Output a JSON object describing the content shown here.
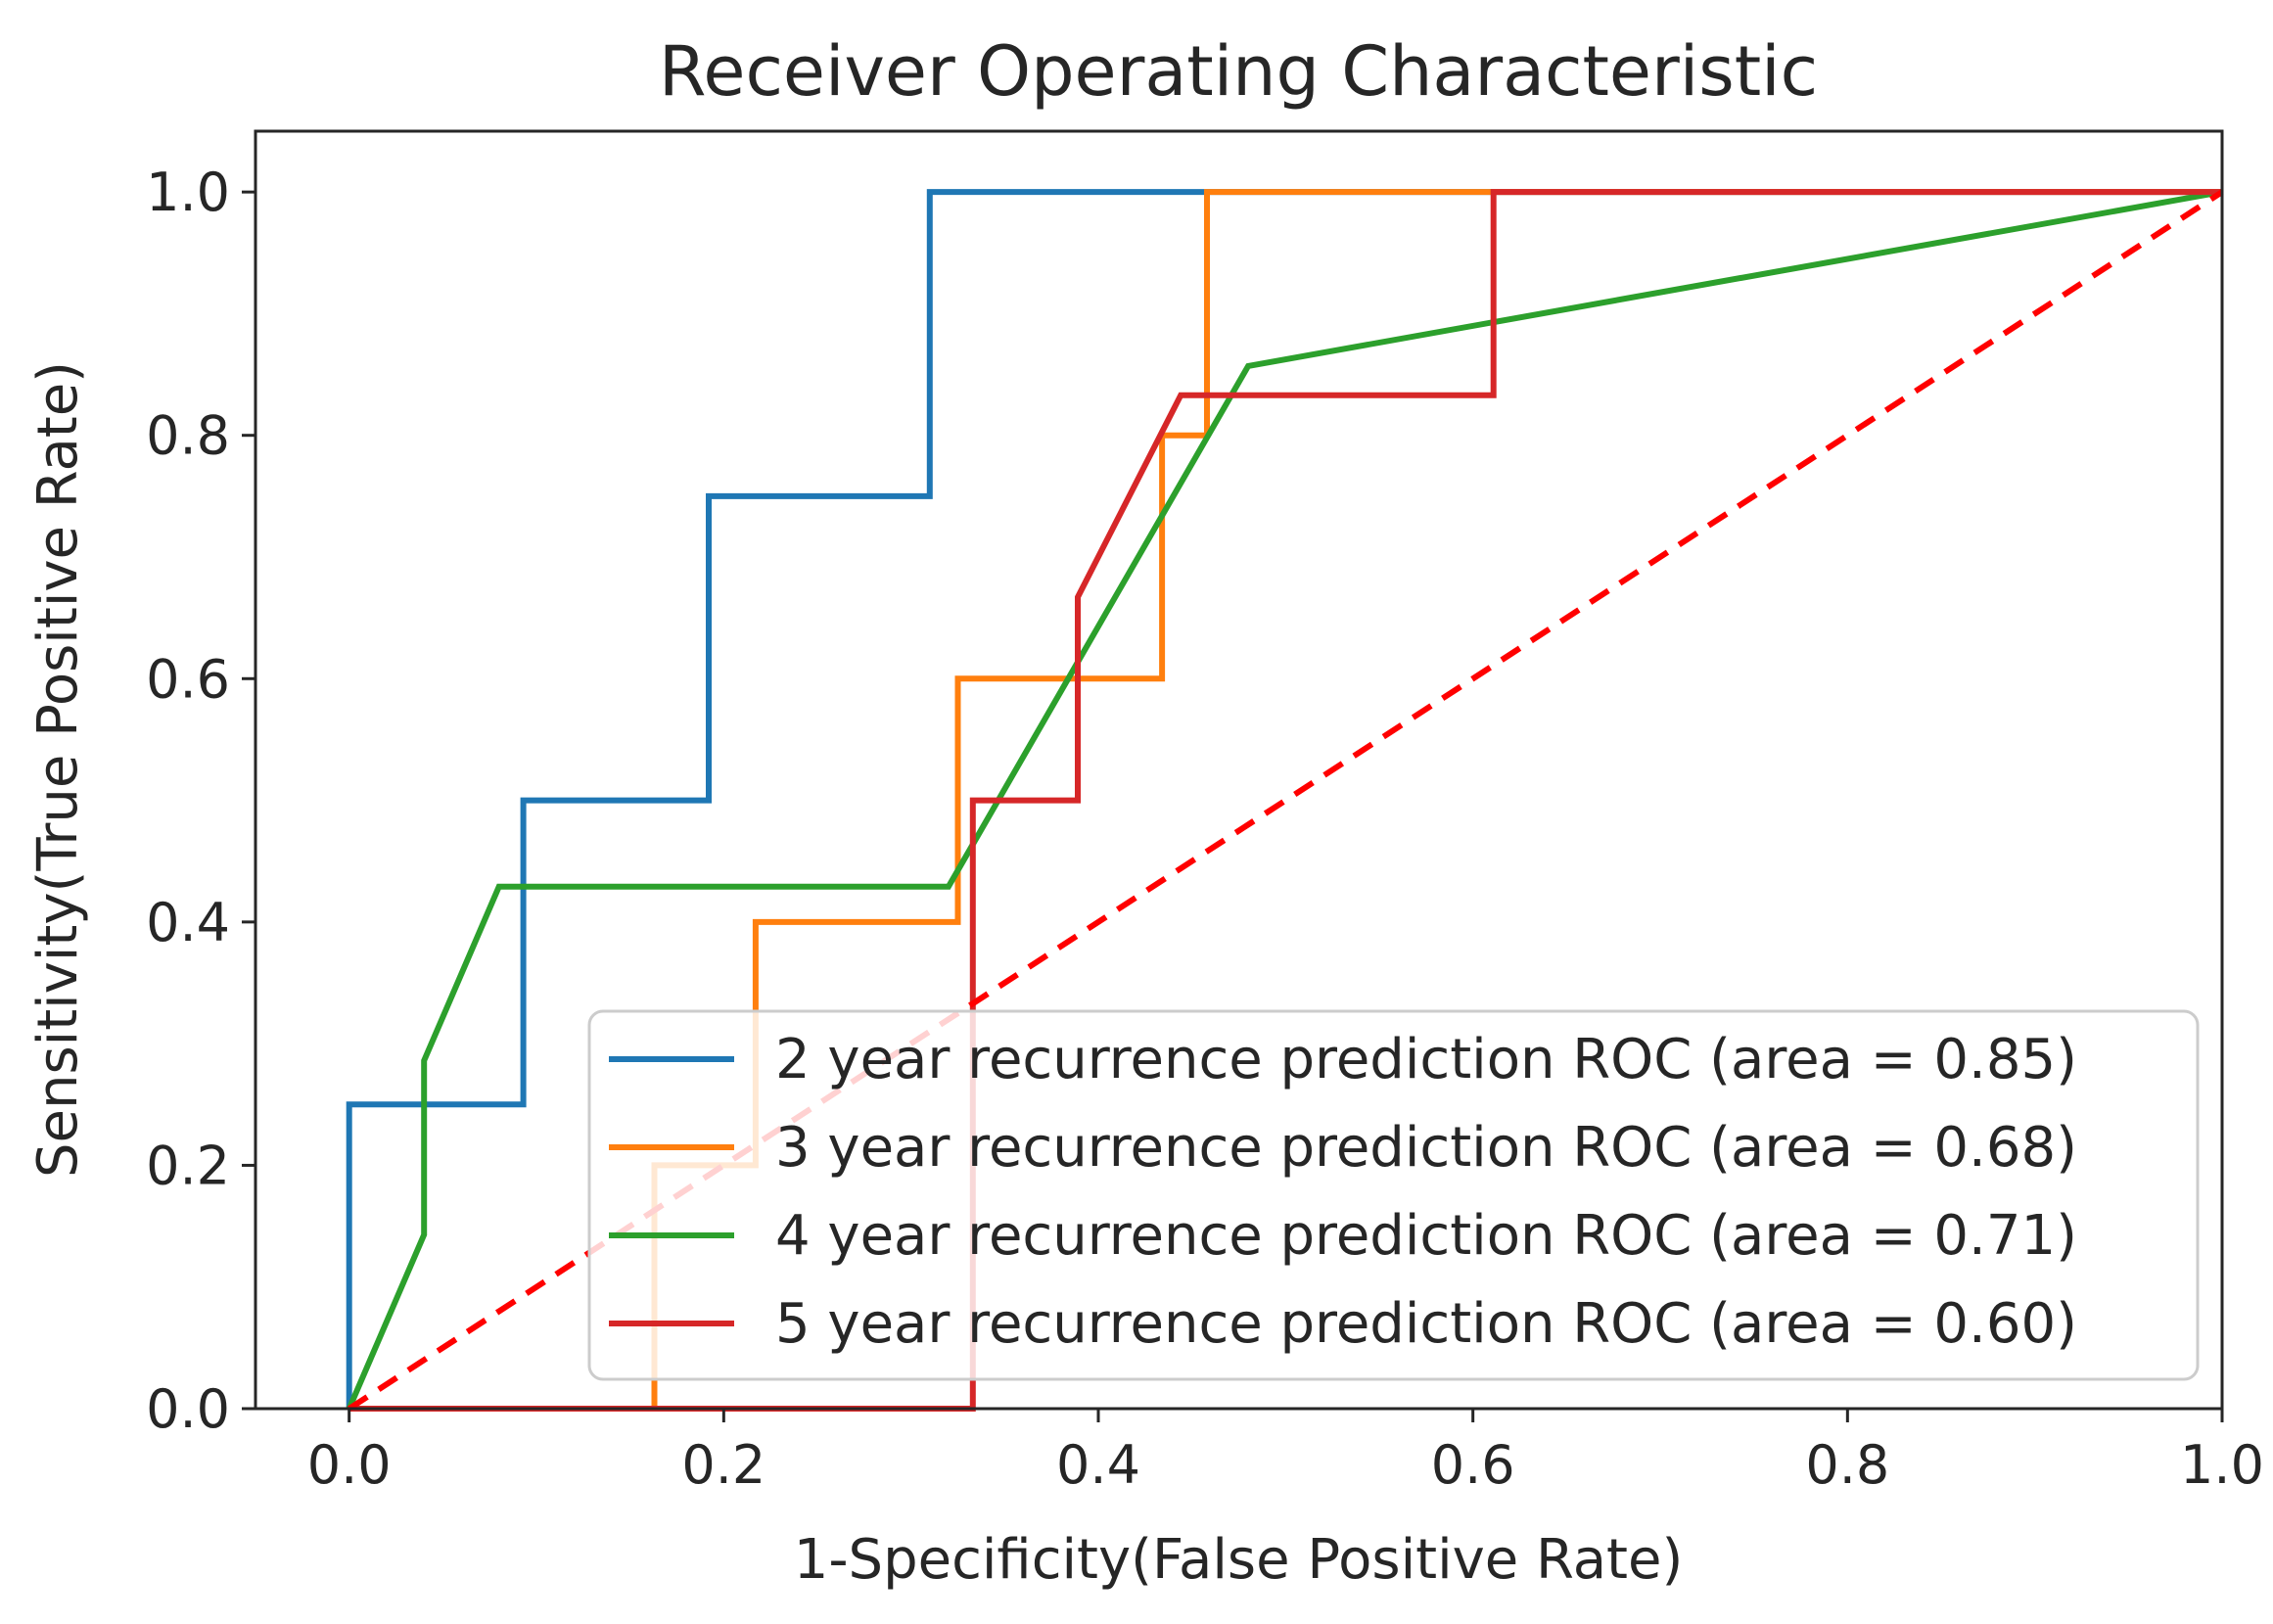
{
  "chart_data": {
    "type": "line",
    "title": "Receiver Operating Characteristic",
    "xlabel": "1-Specificity(False Positive Rate)",
    "ylabel": "Sensitivity(True Positive Rate)",
    "xlim": [
      -0.05,
      1.0
    ],
    "ylim": [
      0.0,
      1.05
    ],
    "xticks": [
      {
        "value": 0.0,
        "label": "0.0"
      },
      {
        "value": 0.2,
        "label": "0.2"
      },
      {
        "value": 0.4,
        "label": "0.4"
      },
      {
        "value": 0.6,
        "label": "0.6"
      },
      {
        "value": 0.8,
        "label": "0.8"
      },
      {
        "value": 1.0,
        "label": "1.0"
      }
    ],
    "yticks": [
      {
        "value": 0.0,
        "label": "0.0"
      },
      {
        "value": 0.2,
        "label": "0.2"
      },
      {
        "value": 0.4,
        "label": "0.4"
      },
      {
        "value": 0.6,
        "label": "0.6"
      },
      {
        "value": 0.8,
        "label": "0.8"
      },
      {
        "value": 1.0,
        "label": "1.0"
      }
    ],
    "legend_position": "lower-right",
    "series": [
      {
        "name": "2 year recurrence prediction ROC (area = 0.85)",
        "color": "#1f77b4",
        "points": [
          [
            0.0,
            0.0
          ],
          [
            0.0,
            0.25
          ],
          [
            0.093,
            0.25
          ],
          [
            0.093,
            0.5
          ],
          [
            0.192,
            0.5
          ],
          [
            0.192,
            0.75
          ],
          [
            0.31,
            0.75
          ],
          [
            0.31,
            1.0
          ],
          [
            1.0,
            1.0
          ]
        ]
      },
      {
        "name": "3 year recurrence prediction ROC (area = 0.68)",
        "color": "#ff7f0e",
        "points": [
          [
            0.0,
            0.0
          ],
          [
            0.163,
            0.0
          ],
          [
            0.163,
            0.2
          ],
          [
            0.217,
            0.2
          ],
          [
            0.217,
            0.4
          ],
          [
            0.325,
            0.4
          ],
          [
            0.325,
            0.6
          ],
          [
            0.434,
            0.6
          ],
          [
            0.434,
            0.8
          ],
          [
            0.458,
            0.8
          ],
          [
            0.458,
            1.0
          ],
          [
            1.0,
            1.0
          ]
        ]
      },
      {
        "name": "4 year recurrence prediction ROC (area = 0.71)",
        "color": "#2ca02c",
        "points": [
          [
            0.0,
            0.0
          ],
          [
            0.04,
            0.143
          ],
          [
            0.04,
            0.286
          ],
          [
            0.08,
            0.429
          ],
          [
            0.32,
            0.429
          ],
          [
            0.48,
            0.857
          ],
          [
            1.0,
            1.0
          ]
        ]
      },
      {
        "name": "5 year recurrence prediction ROC (area = 0.60)",
        "color": "#d62728",
        "points": [
          [
            0.0,
            0.0
          ],
          [
            0.333,
            0.0
          ],
          [
            0.333,
            0.5
          ],
          [
            0.389,
            0.5
          ],
          [
            0.389,
            0.667
          ],
          [
            0.444,
            0.833
          ],
          [
            0.611,
            0.833
          ],
          [
            0.611,
            1.0
          ],
          [
            1.0,
            1.0
          ]
        ]
      }
    ],
    "reference_line": {
      "color": "#ff0000",
      "style": "dashed",
      "points": [
        [
          0.0,
          0.0
        ],
        [
          1.0,
          1.0
        ]
      ]
    }
  }
}
